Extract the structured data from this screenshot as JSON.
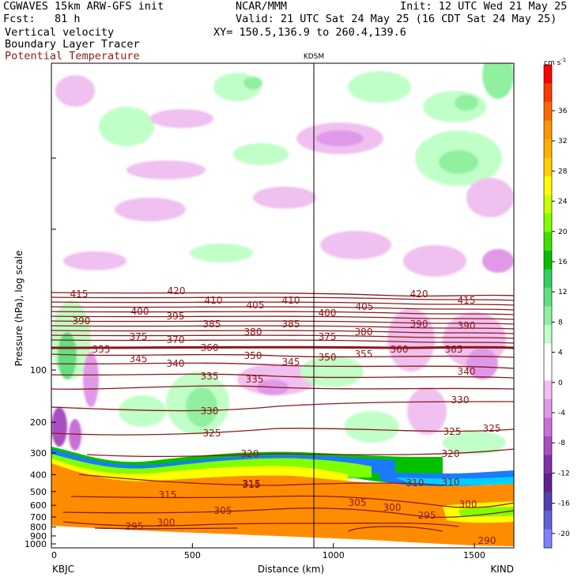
{
  "header": {
    "model": "CGWAVES 15km ARW-GFS init",
    "org": "NCAR/MMM",
    "init": "Init: 12 UTC Wed 21 May 25",
    "fcst": "Fcst:   81 h",
    "valid": "Valid: 21 UTC Sat 24 May 25 (16 CDT Sat 24 May 25)",
    "field1": "Vertical velocity",
    "field2": "Boundary Layer Tracer",
    "field3": "Potential Temperature",
    "xy": "XY= 150.5,136.9 to 260.4,139.6",
    "colors": {
      "field3": "#8b1a1a"
    }
  },
  "chart_data": {
    "type": "heatmap",
    "title": "",
    "xlabel": "Distance (km)",
    "ylabel": "Pressure (hPa), log scale",
    "xlim": [
      0,
      1640
    ],
    "x_ticks": [
      0,
      500,
      1000,
      1500
    ],
    "y_ticks": [
      100,
      200,
      300,
      400,
      500,
      600,
      700,
      800,
      900,
      1000
    ],
    "y_scale": "log",
    "station_left": "KBJC",
    "station_right": "KIND",
    "station_mid": {
      "name": "KDSM",
      "x_km": 940
    },
    "colorbar": {
      "units": "cm s",
      "units_exp": "-1",
      "ticks": [
        "36",
        "32",
        "28",
        "24",
        "20",
        "16",
        "12",
        "8",
        "4",
        "0",
        "-4",
        "-8",
        "-12",
        "-16",
        "-20"
      ],
      "colors": [
        "#ff0000",
        "#ff3a00",
        "#ff6a00",
        "#ff9600",
        "#ffb000",
        "#ffd000",
        "#ffff00",
        "#c8ff00",
        "#80ff00",
        "#40e000",
        "#00c000",
        "#30d060",
        "#60e080",
        "#90f0a0",
        "#c0ffc8",
        "#ffffff",
        "#ffffff",
        "#f0c0f0",
        "#e098e8",
        "#c870d8",
        "#a850c0",
        "#8030a8",
        "#602090",
        "#5040b0",
        "#6060d8",
        "#8080ff"
      ]
    },
    "isentrope_labels": [
      "415",
      "420",
      "410",
      "405",
      "410",
      "405",
      "420",
      "415",
      "390",
      "400",
      "395",
      "385",
      "380",
      "385",
      "400",
      "380",
      "390",
      "390",
      "375",
      "370",
      "360",
      "375",
      "360",
      "365",
      "355",
      "345",
      "340",
      "350",
      "345",
      "350",
      "355",
      "340",
      "335",
      "335",
      "330",
      "330",
      "325",
      "325",
      "325",
      "320",
      "320",
      "315",
      "315",
      "315",
      "310",
      "310",
      "305",
      "305",
      "300",
      "300",
      "300",
      "295",
      "295",
      "290"
    ]
  }
}
